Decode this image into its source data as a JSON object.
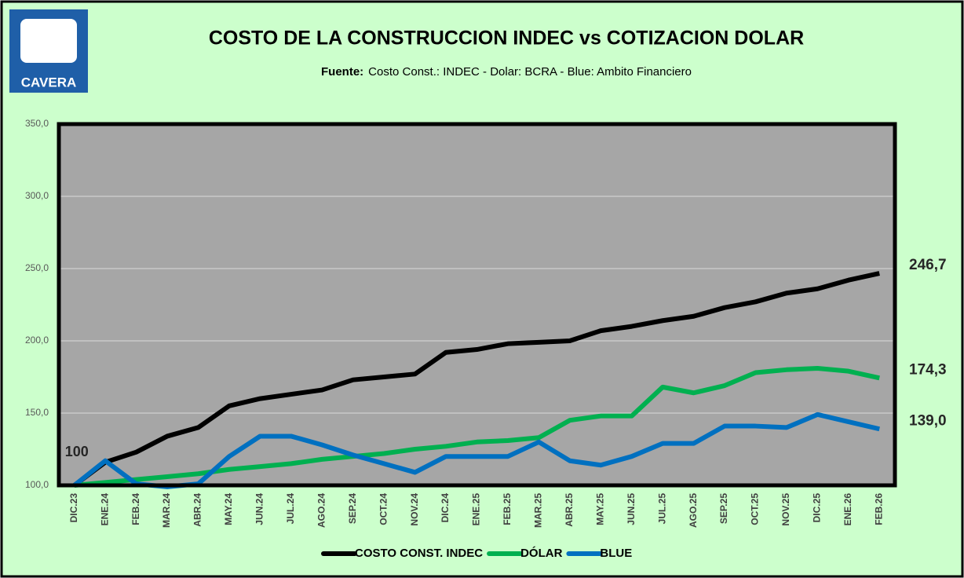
{
  "logo": {
    "text": "CAVERA"
  },
  "chart_data": {
    "type": "line",
    "title": "COSTO DE LA CONSTRUCCION INDEC  vs  COTIZACION DOLAR",
    "source_label": "Fuente:",
    "subtitle": "Costo Const.: INDEC  -  Dolar: BCRA  -  Blue: Ambito Financiero",
    "categories": [
      "DIC.23",
      "ENE.24",
      "FEB.24",
      "MAR.24",
      "ABR.24",
      "MAY.24",
      "JUN.24",
      "JUL.24",
      "AGO.24",
      "SEP.24",
      "OCT.24",
      "NOV.24",
      "DIC.24",
      "ENE.25",
      "FEB.25",
      "MAR.25",
      "ABR.25",
      "MAY.25",
      "JUN.25",
      "JUL.25",
      "AGO.25",
      "SEP.25",
      "OCT.25",
      "NOV.25",
      "DIC.25",
      "ENE.26",
      "FEB.26"
    ],
    "series": [
      {
        "name": "COSTO CONST. INDEC",
        "color": "#000000",
        "values": [
          100,
          116,
          123,
          134,
          140,
          155,
          160,
          163,
          166,
          173,
          175,
          177,
          192,
          194,
          198,
          199,
          200,
          207,
          210,
          214,
          217,
          223,
          227,
          233,
          236,
          242,
          246.7
        ],
        "value_labels": [
          "100",
          null,
          null,
          null,
          null,
          null,
          null,
          null,
          null,
          null,
          null,
          null,
          null,
          null,
          null,
          null,
          null,
          null,
          null,
          null,
          null,
          null,
          null,
          null,
          null,
          null,
          "246,7"
        ]
      },
      {
        "name": "DÓLAR",
        "color": "#00b050",
        "values": [
          100,
          102,
          104,
          106,
          108,
          111,
          113,
          115,
          118,
          120,
          122,
          125,
          127,
          130,
          131,
          133,
          145,
          148,
          148,
          168,
          164,
          169,
          178,
          180,
          181,
          179,
          174.3
        ],
        "value_labels": [
          null,
          null,
          null,
          null,
          null,
          null,
          null,
          null,
          null,
          null,
          null,
          null,
          null,
          null,
          null,
          null,
          null,
          null,
          null,
          null,
          null,
          null,
          null,
          null,
          null,
          null,
          "174,3"
        ]
      },
      {
        "name": "BLUE",
        "color": "#0070c0",
        "values": [
          100,
          117,
          101,
          99,
          101,
          120,
          134,
          134,
          128,
          121,
          115,
          109,
          120,
          120,
          120,
          130,
          117,
          114,
          120,
          129,
          129,
          141,
          141,
          140,
          149,
          144,
          139
        ],
        "value_labels": [
          null,
          null,
          null,
          null,
          null,
          null,
          null,
          null,
          null,
          null,
          null,
          null,
          null,
          null,
          null,
          null,
          null,
          null,
          null,
          null,
          null,
          null,
          null,
          null,
          null,
          null,
          "139,0"
        ]
      }
    ],
    "ylim": [
      100,
      350
    ],
    "yticks": [
      {
        "value": 100,
        "label": "100,0"
      },
      {
        "value": 150,
        "label": "150,0"
      },
      {
        "value": 200,
        "label": "200,0"
      },
      {
        "value": 250,
        "label": "250,0"
      },
      {
        "value": 300,
        "label": "300,0"
      },
      {
        "value": 350,
        "label": "350,0"
      }
    ],
    "grid": true
  }
}
